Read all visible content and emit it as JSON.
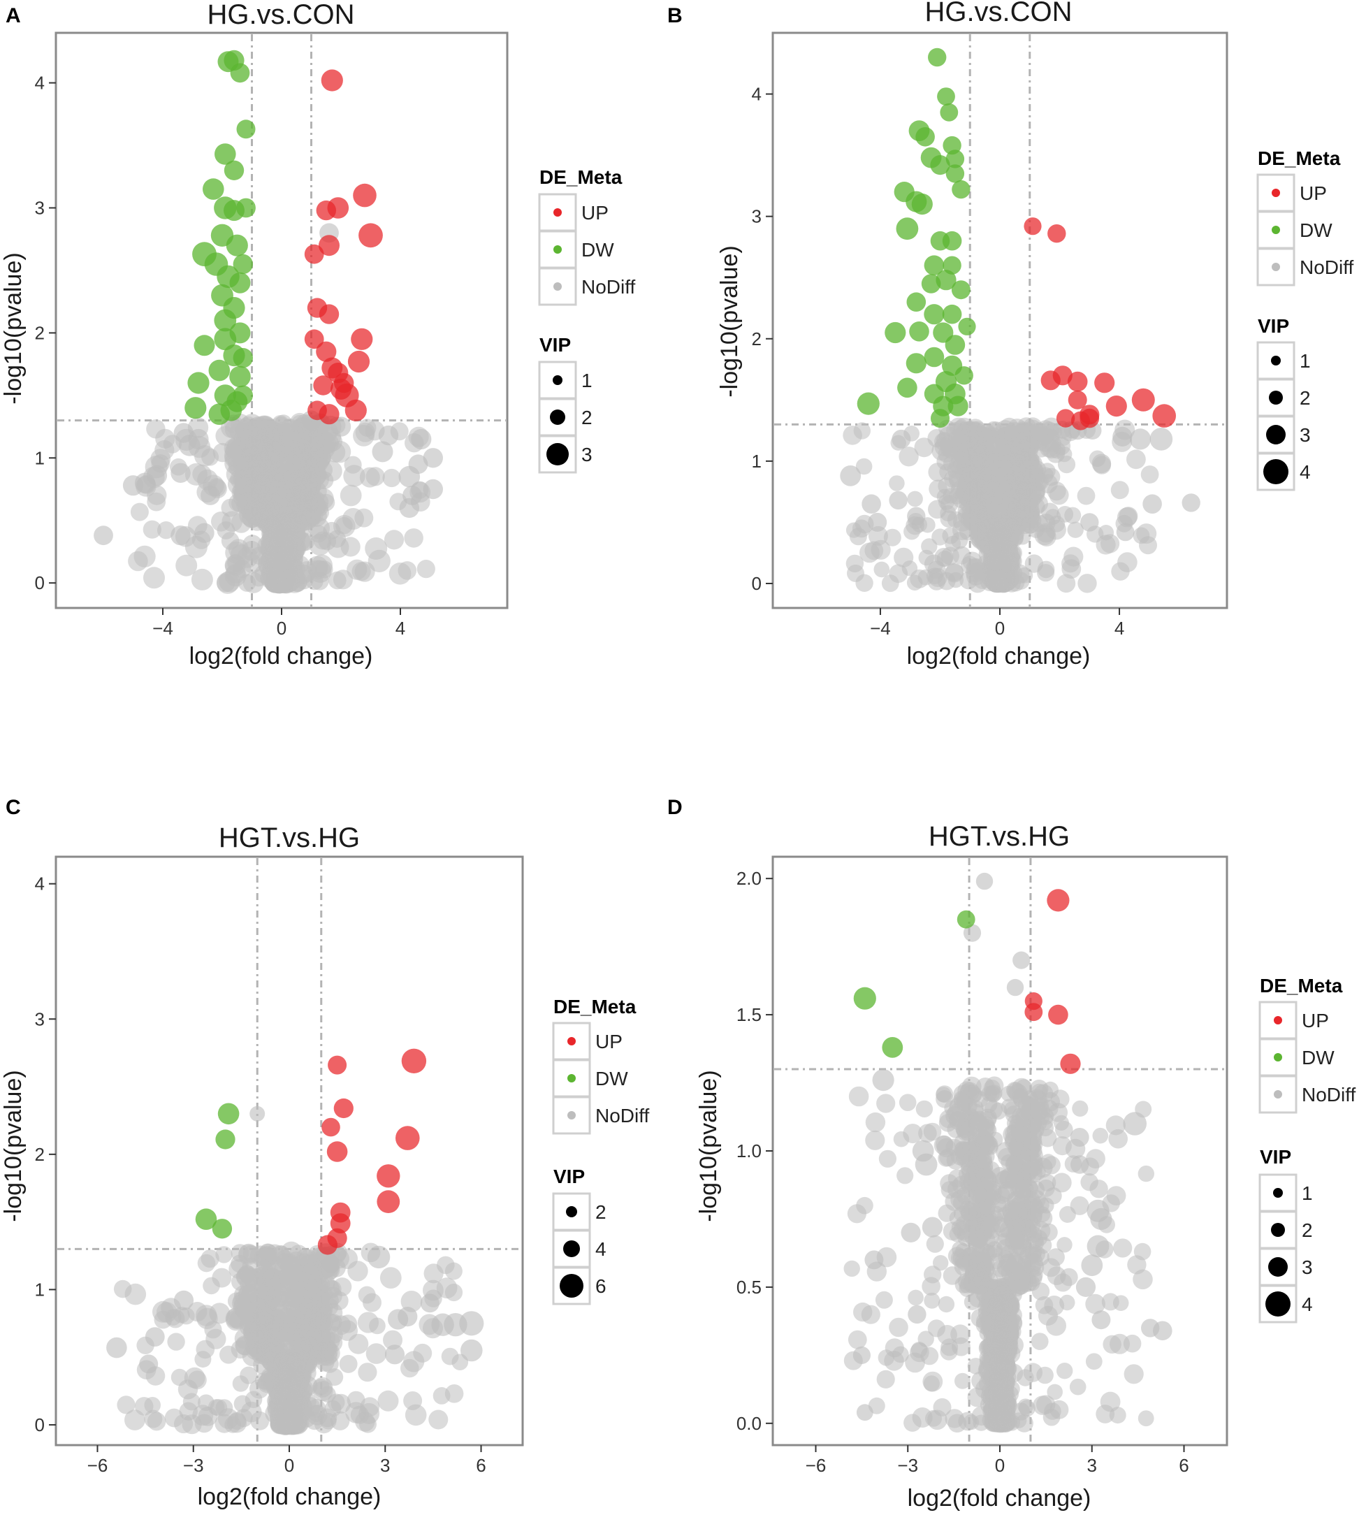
{
  "figure": {
    "colors": {
      "up": "#e8262a",
      "dw": "#5cb531",
      "nodiff": "#bdbdbd",
      "vip": "#000000",
      "frame": "#8a8a8a",
      "guide": "#b3b3b3"
    }
  },
  "chart_data": [
    {
      "type": "scatter",
      "panel": "A",
      "title": "HG.vs.CON",
      "xlabel": "log2(fold change)",
      "ylabel": "-log10(pvalue)",
      "xlim": [
        -7.6,
        7.6
      ],
      "ylim": [
        -0.2,
        4.4
      ],
      "xticks": [
        -4,
        0,
        4
      ],
      "xtick_labels": [
        "−4",
        "0",
        "4"
      ],
      "yticks": [
        0,
        1,
        2,
        3,
        4
      ],
      "ytick_labels": [
        "0",
        "1",
        "2",
        "3",
        "4"
      ],
      "fc_threshold": [
        -1,
        1
      ],
      "p_threshold": 1.3,
      "legend_color_title": "DE_Meta",
      "legend_color_labels": [
        "UP",
        "DW",
        "NoDiff"
      ],
      "legend_size_title": "VIP",
      "legend_size_labels": [
        "1",
        "2",
        "3"
      ],
      "legend_size_values": [
        1,
        2,
        3
      ],
      "up": [
        [
          1.7,
          4.02,
          1.8
        ],
        [
          2.8,
          3.1,
          2.2
        ],
        [
          3.0,
          2.78,
          2.4
        ],
        [
          1.9,
          3.0,
          1.7
        ],
        [
          1.5,
          2.98,
          1.4
        ],
        [
          1.6,
          2.7,
          1.6
        ],
        [
          1.1,
          2.63,
          1.3
        ],
        [
          1.2,
          2.2,
          1.4
        ],
        [
          1.6,
          2.15,
          1.4
        ],
        [
          2.7,
          1.95,
          1.8
        ],
        [
          1.1,
          1.95,
          1.3
        ],
        [
          1.5,
          1.85,
          1.5
        ],
        [
          2.6,
          1.77,
          1.8
        ],
        [
          1.7,
          1.72,
          1.6
        ],
        [
          1.9,
          1.68,
          1.5
        ],
        [
          2.0,
          1.55,
          1.6
        ],
        [
          2.2,
          1.5,
          2.3
        ],
        [
          1.2,
          1.38,
          1.3
        ],
        [
          1.6,
          1.35,
          1.5
        ],
        [
          2.5,
          1.38,
          1.8
        ],
        [
          1.4,
          1.58,
          1.4
        ],
        [
          2.1,
          1.6,
          1.4
        ]
      ],
      "dw": [
        [
          -1.8,
          4.17,
          1.6
        ],
        [
          -1.4,
          4.08,
          1.3
        ],
        [
          -1.6,
          4.18,
          1.5
        ],
        [
          -1.2,
          3.63,
          1.2
        ],
        [
          -1.9,
          3.43,
          1.7
        ],
        [
          -1.6,
          3.3,
          1.4
        ],
        [
          -2.3,
          3.15,
          1.7
        ],
        [
          -1.9,
          3.0,
          2.0
        ],
        [
          -1.6,
          2.98,
          1.6
        ],
        [
          -2.0,
          2.78,
          2.0
        ],
        [
          -1.5,
          2.7,
          1.8
        ],
        [
          -2.6,
          2.63,
          2.4
        ],
        [
          -2.2,
          2.55,
          2.2
        ],
        [
          -1.8,
          2.45,
          2.0
        ],
        [
          -1.4,
          2.4,
          1.6
        ],
        [
          -2.0,
          2.3,
          1.9
        ],
        [
          -1.6,
          2.2,
          1.8
        ],
        [
          -1.9,
          2.1,
          1.9
        ],
        [
          -1.4,
          2.0,
          1.6
        ],
        [
          -1.9,
          1.95,
          1.9
        ],
        [
          -2.6,
          1.9,
          1.6
        ],
        [
          -1.6,
          1.82,
          1.8
        ],
        [
          -2.1,
          1.7,
          1.7
        ],
        [
          -1.4,
          1.65,
          1.7
        ],
        [
          -2.8,
          1.6,
          1.8
        ],
        [
          -1.9,
          1.5,
          1.8
        ],
        [
          -1.5,
          1.45,
          1.6
        ],
        [
          -2.9,
          1.4,
          1.8
        ],
        [
          -1.7,
          1.38,
          1.7
        ],
        [
          -2.1,
          1.35,
          1.7
        ],
        [
          -1.3,
          1.5,
          1.4
        ],
        [
          -1.3,
          1.8,
          1.4
        ],
        [
          -1.3,
          2.55,
          1.4
        ],
        [
          -1.2,
          3.0,
          1.3
        ]
      ],
      "nodiff_big": [
        [
          -6.0,
          0.38,
          1.3
        ],
        [
          -5.0,
          0.78,
          1.5
        ],
        [
          -4.6,
          0.8,
          1.5
        ],
        [
          -4.2,
          0.86,
          1.5
        ],
        [
          -3.4,
          0.88,
          1.4
        ],
        [
          -3.4,
          0.38,
          1.4
        ],
        [
          -3.1,
          1.1,
          1.7
        ],
        [
          -3.3,
          1.2,
          1.4
        ],
        [
          -2.8,
          1.15,
          1.5
        ],
        [
          -2.6,
          0.4,
          1.4
        ],
        [
          -2.4,
          0.7,
          1.3
        ],
        [
          1.6,
          2.8,
          1.3
        ],
        [
          1.0,
          1.3,
          1.4
        ],
        [
          3.6,
          1.18,
          1.4
        ],
        [
          3.4,
          1.05,
          1.6
        ],
        [
          4.3,
          0.85,
          1.7
        ],
        [
          5.1,
          0.75,
          1.4
        ],
        [
          4.7,
          1.15,
          1.5
        ],
        [
          4.3,
          0.6,
          1.4
        ],
        [
          4.4,
          0.7,
          1.3
        ],
        [
          4.6,
          0.95,
          1.3
        ],
        [
          5.1,
          1.0,
          1.4
        ],
        [
          2.0,
          1.25,
          1.4
        ]
      ],
      "cloud": {
        "seed": 11,
        "n": 1250,
        "xspread": 0.9,
        "ymax": 1.28,
        "ypow": 1.7,
        "vmin": 0.9,
        "vmax": 1.8,
        "scatter_x": 2.3,
        "n_far": 80
      }
    },
    {
      "type": "scatter",
      "panel": "B",
      "title": "HG.vs.CON",
      "xlabel": "log2(fold change)",
      "ylabel": "-log10(pvalue)",
      "xlim": [
        -7.6,
        7.6
      ],
      "ylim": [
        -0.2,
        4.5
      ],
      "xticks": [
        -4,
        0,
        4
      ],
      "xtick_labels": [
        "−4",
        "0",
        "4"
      ],
      "yticks": [
        0,
        1,
        2,
        3,
        4
      ],
      "ytick_labels": [
        "0",
        "1",
        "2",
        "3",
        "4"
      ],
      "fc_threshold": [
        -1,
        1
      ],
      "p_threshold": 1.3,
      "legend_color_title": "DE_Meta",
      "legend_color_labels": [
        "UP",
        "DW",
        "NoDiff"
      ],
      "legend_size_title": "VIP",
      "legend_size_labels": [
        "1",
        "2",
        "3",
        "4"
      ],
      "legend_size_values": [
        1,
        2,
        3,
        4
      ],
      "up": [
        [
          1.1,
          2.92,
          1.3
        ],
        [
          1.9,
          2.86,
          1.5
        ],
        [
          1.7,
          1.66,
          1.8
        ],
        [
          2.1,
          1.7,
          1.8
        ],
        [
          2.6,
          1.65,
          1.9
        ],
        [
          3.5,
          1.64,
          2.0
        ],
        [
          2.6,
          1.5,
          1.6
        ],
        [
          2.2,
          1.35,
          1.5
        ],
        [
          2.7,
          1.33,
          1.6
        ],
        [
          3.0,
          1.38,
          1.8
        ],
        [
          3.9,
          1.45,
          2.2
        ],
        [
          4.8,
          1.5,
          2.8
        ],
        [
          5.5,
          1.37,
          2.9
        ],
        [
          3.0,
          1.35,
          1.7
        ]
      ],
      "dw": [
        [
          -2.1,
          4.3,
          1.5
        ],
        [
          -1.8,
          3.98,
          1.4
        ],
        [
          -1.7,
          3.85,
          1.4
        ],
        [
          -2.7,
          3.7,
          2.1
        ],
        [
          -2.5,
          3.65,
          1.7
        ],
        [
          -2.3,
          3.48,
          2.1
        ],
        [
          -1.6,
          3.58,
          1.5
        ],
        [
          -2.0,
          3.42,
          1.8
        ],
        [
          -1.5,
          3.47,
          1.5
        ],
        [
          -1.5,
          3.35,
          1.5
        ],
        [
          -3.2,
          3.2,
          2.0
        ],
        [
          -2.6,
          3.1,
          2.2
        ],
        [
          -2.8,
          3.12,
          2.2
        ],
        [
          -1.3,
          3.22,
          1.5
        ],
        [
          -3.1,
          2.9,
          2.5
        ],
        [
          -2.0,
          2.8,
          1.7
        ],
        [
          -1.6,
          2.8,
          1.7
        ],
        [
          -2.2,
          2.6,
          1.9
        ],
        [
          -1.6,
          2.6,
          1.5
        ],
        [
          -1.8,
          2.48,
          2.0
        ],
        [
          -2.3,
          2.45,
          1.7
        ],
        [
          -1.3,
          2.4,
          1.6
        ],
        [
          -2.8,
          2.3,
          1.7
        ],
        [
          -2.2,
          2.2,
          2.0
        ],
        [
          -1.6,
          2.2,
          1.7
        ],
        [
          -3.5,
          2.05,
          2.2
        ],
        [
          -2.7,
          2.06,
          1.9
        ],
        [
          -1.9,
          2.05,
          2.0
        ],
        [
          -1.5,
          1.95,
          1.9
        ],
        [
          -2.2,
          1.85,
          1.9
        ],
        [
          -1.6,
          1.78,
          2.0
        ],
        [
          -2.8,
          1.8,
          2.0
        ],
        [
          -1.8,
          1.65,
          2.2
        ],
        [
          -2.2,
          1.55,
          1.8
        ],
        [
          -1.5,
          1.55,
          2.1
        ],
        [
          -3.1,
          1.6,
          1.9
        ],
        [
          -1.9,
          1.45,
          2.0
        ],
        [
          -1.4,
          1.45,
          2.0
        ],
        [
          -4.4,
          1.47,
          2.6
        ],
        [
          -2.0,
          1.35,
          1.6
        ],
        [
          -1.2,
          1.7,
          1.5
        ],
        [
          -1.1,
          2.1,
          1.3
        ]
      ],
      "nodiff_big": [
        [
          -5.0,
          0.88,
          2.1
        ],
        [
          -4.3,
          0.65,
          1.7
        ],
        [
          -4.1,
          0.5,
          1.6
        ],
        [
          -3.4,
          0.68,
          1.5
        ],
        [
          -3.3,
          1.18,
          1.6
        ],
        [
          -2.8,
          0.55,
          1.5
        ],
        [
          3.4,
          0.98,
          1.7
        ],
        [
          4.1,
          1.2,
          1.8
        ],
        [
          4.7,
          1.18,
          2.2
        ],
        [
          5.4,
          1.18,
          2.7
        ],
        [
          6.4,
          0.66,
          1.5
        ],
        [
          5.1,
          0.65,
          1.7
        ],
        [
          4.3,
          0.55,
          1.6
        ],
        [
          3.0,
          0.5,
          1.5
        ],
        [
          4.2,
          0.42,
          1.4
        ],
        [
          2.6,
          1.25,
          1.5
        ],
        [
          3.1,
          1.25,
          1.4
        ]
      ],
      "cloud": {
        "seed": 23,
        "n": 1150,
        "xspread": 0.95,
        "ymax": 1.28,
        "ypow": 1.5,
        "vmin": 0.9,
        "vmax": 1.8,
        "scatter_x": 2.4,
        "n_far": 90
      }
    },
    {
      "type": "scatter",
      "panel": "C",
      "title": "HGT.vs.HG",
      "xlabel": "log2(fold change)",
      "ylabel": "-log10(pvalue)",
      "xlim": [
        -7.3,
        7.3
      ],
      "ylim": [
        -0.15,
        4.2
      ],
      "xticks": [
        -6,
        -3,
        0,
        3,
        6
      ],
      "xtick_labels": [
        "−6",
        "−3",
        "0",
        "3",
        "6"
      ],
      "yticks": [
        0,
        1,
        2,
        3,
        4
      ],
      "ytick_labels": [
        "0",
        "1",
        "2",
        "3",
        "4"
      ],
      "fc_threshold": [
        -1,
        1
      ],
      "p_threshold": 1.3,
      "legend_color_title": "DE_Meta",
      "legend_color_labels": [
        "UP",
        "DW",
        "NoDiff"
      ],
      "legend_size_title": "VIP",
      "legend_size_labels": [
        "2",
        "4",
        "6"
      ],
      "legend_size_values": [
        2,
        4,
        6
      ],
      "up": [
        [
          1.5,
          2.66,
          2.4
        ],
        [
          3.9,
          2.69,
          5.0
        ],
        [
          1.7,
          2.34,
          2.7
        ],
        [
          1.3,
          2.2,
          2.3
        ],
        [
          3.7,
          2.12,
          4.7
        ],
        [
          1.5,
          2.02,
          3.1
        ],
        [
          3.1,
          1.84,
          4.3
        ],
        [
          3.1,
          1.65,
          4.1
        ],
        [
          1.6,
          1.57,
          2.9
        ],
        [
          1.6,
          1.49,
          2.9
        ],
        [
          1.5,
          1.38,
          2.7
        ],
        [
          1.2,
          1.33,
          2.7
        ]
      ],
      "dw": [
        [
          -1.9,
          2.3,
          3.4
        ],
        [
          -2.0,
          2.11,
          2.7
        ],
        [
          -2.6,
          1.52,
          3.4
        ],
        [
          -2.1,
          1.45,
          2.8
        ]
      ],
      "nodiff_big": [
        [
          5.7,
          0.75,
          4.9
        ],
        [
          5.2,
          0.74,
          4.3
        ],
        [
          4.8,
          0.74,
          4.0
        ],
        [
          5.7,
          0.55,
          3.7
        ],
        [
          3.4,
          0.78,
          3.0
        ],
        [
          3.3,
          0.52,
          2.7
        ],
        [
          2.8,
          1.24,
          4.0
        ],
        [
          3.7,
          0.8,
          2.7
        ],
        [
          4.4,
          0.9,
          2.4
        ],
        [
          -5.4,
          0.57,
          3.1
        ],
        [
          -4.2,
          0.65,
          2.6
        ],
        [
          -4.4,
          0.45,
          2.4
        ],
        [
          -3.3,
          0.92,
          2.7
        ],
        [
          1.3,
          1.19,
          2.2
        ],
        [
          -1.0,
          2.3,
          1.3
        ]
      ],
      "cloud": {
        "seed": 37,
        "n": 1050,
        "xspread": 0.95,
        "ymax": 1.28,
        "ypow": 1.8,
        "vmin": 1.6,
        "vmax": 3.2,
        "scatter_x": 2.6,
        "n_far": 90
      }
    },
    {
      "type": "scatter",
      "panel": "D",
      "title": "HGT.vs.HG",
      "xlabel": "log2(fold change)",
      "ylabel": "-log10(pvalue)",
      "xlim": [
        -7.4,
        7.4
      ],
      "ylim": [
        -0.08,
        2.08
      ],
      "xticks": [
        -6,
        -3,
        0,
        3,
        6
      ],
      "xtick_labels": [
        "−6",
        "−3",
        "0",
        "3",
        "6"
      ],
      "yticks": [
        0,
        0.5,
        1,
        1.5,
        2
      ],
      "ytick_labels": [
        "0.0",
        "0.5",
        "1.0",
        "1.5",
        "2.0"
      ],
      "fc_threshold": [
        -1,
        1
      ],
      "p_threshold": 1.3,
      "legend_color_title": "DE_Meta",
      "legend_color_labels": [
        "UP",
        "DW",
        "NoDiff"
      ],
      "legend_size_title": "VIP",
      "legend_size_labels": [
        "1",
        "2",
        "3",
        "4"
      ],
      "legend_size_values": [
        1,
        2,
        3,
        4
      ],
      "up": [
        [
          1.9,
          1.92,
          2.6
        ],
        [
          1.1,
          1.55,
          1.3
        ],
        [
          1.1,
          1.51,
          1.4
        ],
        [
          1.9,
          1.5,
          1.9
        ],
        [
          2.3,
          1.32,
          2.0
        ]
      ],
      "dw": [
        [
          -1.1,
          1.85,
          1.4
        ],
        [
          -4.4,
          1.56,
          2.6
        ],
        [
          -3.5,
          1.38,
          2.1
        ]
      ],
      "nodiff_big": [
        [
          -3.8,
          1.26,
          2.4
        ],
        [
          -0.5,
          1.99,
          1.2
        ],
        [
          -0.9,
          1.8,
          1.3
        ],
        [
          0.7,
          1.7,
          1.3
        ],
        [
          0.5,
          1.6,
          1.2
        ],
        [
          4.4,
          1.1,
          2.9
        ],
        [
          3.2,
          0.78,
          2.6
        ],
        [
          3.3,
          0.75,
          2.4
        ],
        [
          3.2,
          0.65,
          2.5
        ],
        [
          3.0,
          0.58,
          2.3
        ],
        [
          2.8,
          0.5,
          1.8
        ],
        [
          3.3,
          0.38,
          1.6
        ],
        [
          5.3,
          0.34,
          1.7
        ],
        [
          4.9,
          0.35,
          1.5
        ],
        [
          -4.1,
          0.6,
          1.6
        ],
        [
          -4.5,
          0.25,
          1.3
        ],
        [
          -4.4,
          0.04,
          1.1
        ],
        [
          -2.5,
          1.0,
          2.3
        ],
        [
          -2.4,
          0.95,
          2.5
        ],
        [
          -2.2,
          0.72,
          2.0
        ],
        [
          2.6,
          1.05,
          1.6
        ],
        [
          2.6,
          0.95,
          1.5
        ],
        [
          -2.9,
          0.7,
          1.8
        ],
        [
          -2.7,
          0.4,
          1.5
        ]
      ],
      "cloud": {
        "seed": 53,
        "n": 1200,
        "xspread": 0.8,
        "ymax": 1.24,
        "ypow": 1.6,
        "vmin": 0.9,
        "vmax": 1.8,
        "scatter_x": 2.3,
        "n_far": 100
      }
    }
  ]
}
